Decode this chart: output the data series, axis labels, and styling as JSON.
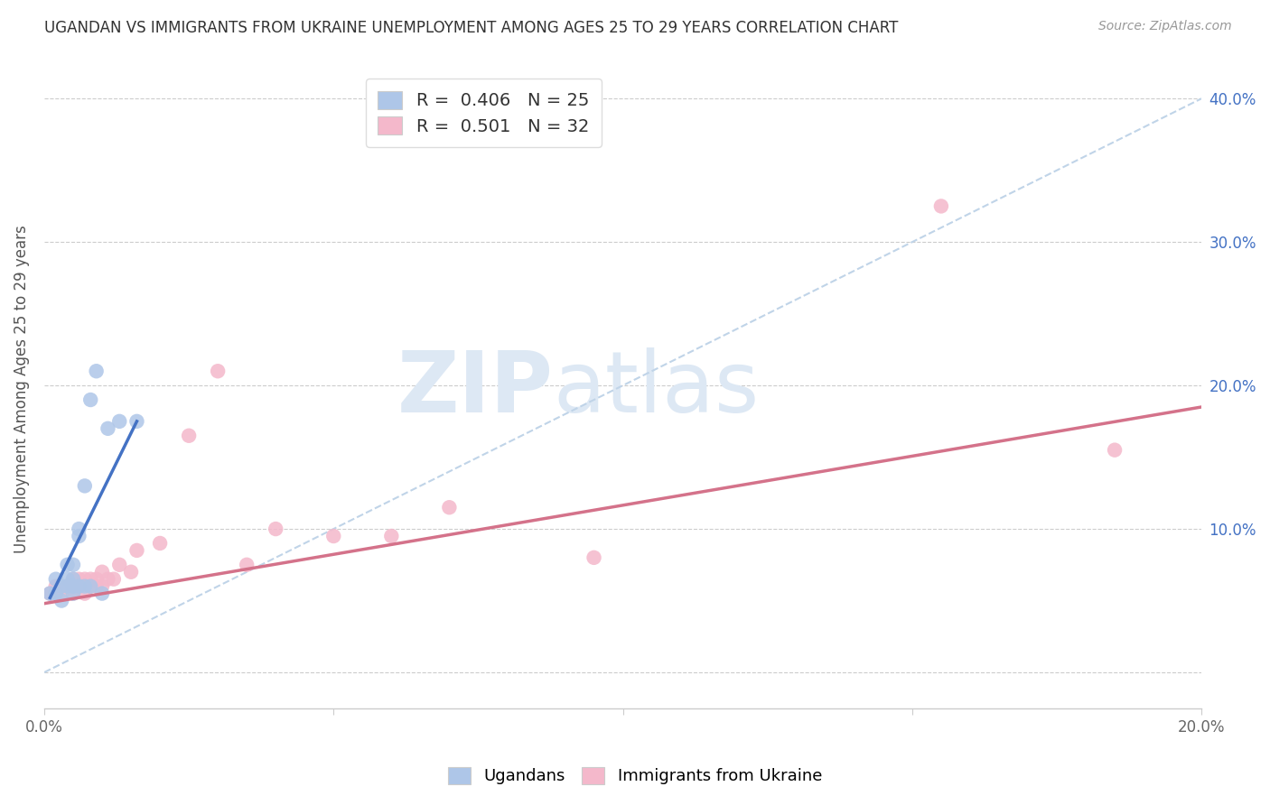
{
  "title": "UGANDAN VS IMMIGRANTS FROM UKRAINE UNEMPLOYMENT AMONG AGES 25 TO 29 YEARS CORRELATION CHART",
  "source": "Source: ZipAtlas.com",
  "ylabel": "Unemployment Among Ages 25 to 29 years",
  "background_color": "#ffffff",
  "ugandan_color": "#aec6e8",
  "ukraine_color": "#f4b8cb",
  "ugandan_line_color": "#4472c4",
  "ukraine_line_color": "#d4728a",
  "diagonal_color": "#c0d4e8",
  "R_ugandan": "0.406",
  "N_ugandan": "25",
  "R_ukraine": "0.501",
  "N_ukraine": "32",
  "legend_label_ugandan": "Ugandans",
  "legend_label_ukraine": "Immigrants from Ukraine",
  "xmin": 0.0,
  "xmax": 0.2,
  "ymin": -0.025,
  "ymax": 0.42,
  "yticks": [
    0.0,
    0.1,
    0.2,
    0.3,
    0.4
  ],
  "ytick_labels_right": [
    "",
    "10.0%",
    "20.0%",
    "30.0%",
    "40.0%"
  ],
  "xticks": [
    0.0,
    0.05,
    0.1,
    0.15,
    0.2
  ],
  "xtick_labels": [
    "0.0%",
    "",
    "",
    "",
    "20.0%"
  ],
  "ugandan_x": [
    0.001,
    0.002,
    0.002,
    0.003,
    0.003,
    0.004,
    0.004,
    0.004,
    0.005,
    0.005,
    0.005,
    0.005,
    0.005,
    0.006,
    0.006,
    0.006,
    0.007,
    0.007,
    0.008,
    0.008,
    0.009,
    0.01,
    0.011,
    0.013,
    0.016
  ],
  "ugandan_y": [
    0.055,
    0.065,
    0.055,
    0.06,
    0.05,
    0.065,
    0.06,
    0.075,
    0.06,
    0.065,
    0.075,
    0.06,
    0.055,
    0.095,
    0.1,
    0.06,
    0.13,
    0.06,
    0.19,
    0.06,
    0.21,
    0.055,
    0.17,
    0.175,
    0.175
  ],
  "ukraine_x": [
    0.001,
    0.002,
    0.003,
    0.004,
    0.005,
    0.005,
    0.006,
    0.006,
    0.007,
    0.007,
    0.008,
    0.008,
    0.009,
    0.009,
    0.01,
    0.01,
    0.011,
    0.012,
    0.013,
    0.015,
    0.016,
    0.02,
    0.025,
    0.03,
    0.035,
    0.04,
    0.05,
    0.06,
    0.07,
    0.095,
    0.155,
    0.185
  ],
  "ukraine_y": [
    0.055,
    0.06,
    0.055,
    0.06,
    0.055,
    0.065,
    0.06,
    0.065,
    0.055,
    0.065,
    0.06,
    0.065,
    0.06,
    0.065,
    0.06,
    0.07,
    0.065,
    0.065,
    0.075,
    0.07,
    0.085,
    0.09,
    0.165,
    0.21,
    0.075,
    0.1,
    0.095,
    0.095,
    0.115,
    0.08,
    0.325,
    0.155
  ],
  "ugandan_line_x": [
    0.001,
    0.016
  ],
  "ugandan_line_y": [
    0.052,
    0.175
  ],
  "ukraine_line_x": [
    0.0,
    0.2
  ],
  "ukraine_line_y": [
    0.048,
    0.185
  ]
}
